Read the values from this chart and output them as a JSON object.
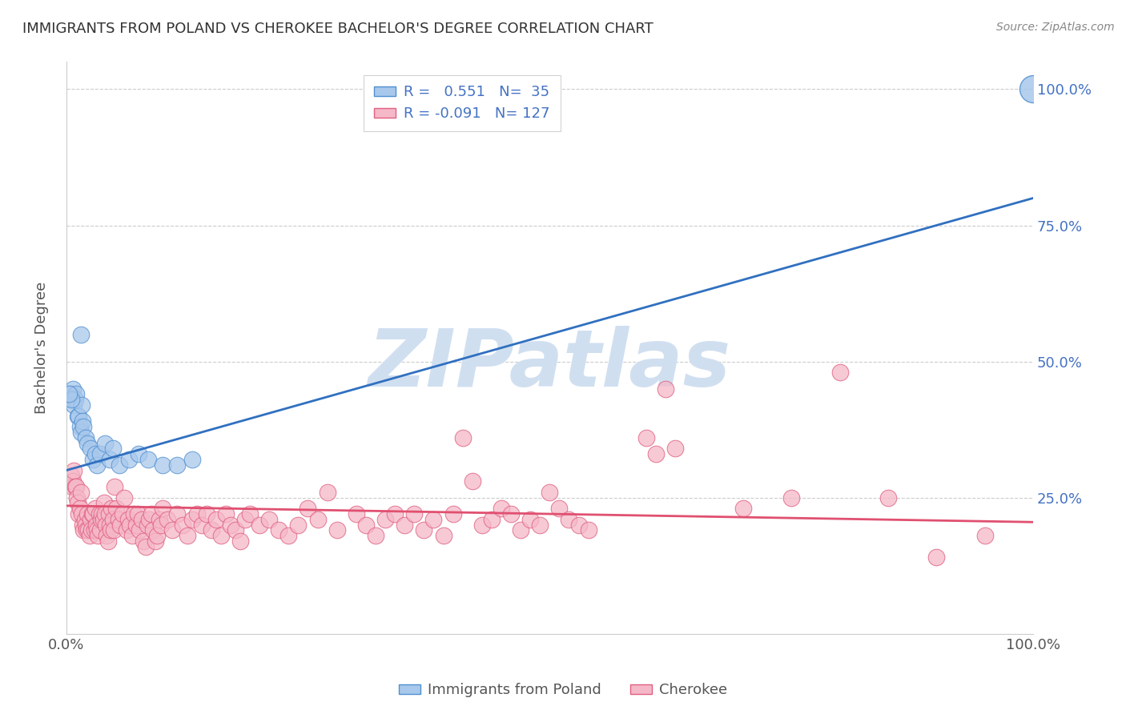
{
  "title": "IMMIGRANTS FROM POLAND VS CHEROKEE BACHELOR'S DEGREE CORRELATION CHART",
  "source": "Source: ZipAtlas.com",
  "ylabel": "Bachelor's Degree",
  "blue_R": "0.551",
  "blue_N": "35",
  "pink_R": "-0.091",
  "pink_N": "127",
  "blue_color": "#A8C8EC",
  "pink_color": "#F5B8C8",
  "blue_edge_color": "#5090D0",
  "pink_edge_color": "#E06080",
  "blue_line_color": "#3070C0",
  "pink_line_color": "#E05070",
  "watermark_color": "#D0DFF0",
  "xlim": [
    0.0,
    1.0
  ],
  "ylim": [
    0.0,
    1.05
  ],
  "yticks": [
    0.25,
    0.5,
    0.75,
    1.0
  ],
  "ytick_labels": [
    "25.0%",
    "50.0%",
    "75.0%",
    "100.0%"
  ],
  "blue_line": {
    "x0": 0.0,
    "y0": 0.3,
    "x1": 1.0,
    "y1": 0.8
  },
  "pink_line": {
    "x0": 0.0,
    "y0": 0.235,
    "x1": 1.0,
    "y1": 0.205
  },
  "blue_dots": [
    [
      0.004,
      0.44
    ],
    [
      0.005,
      0.44
    ],
    [
      0.006,
      0.43
    ],
    [
      0.007,
      0.45
    ],
    [
      0.008,
      0.42
    ],
    [
      0.009,
      0.43
    ],
    [
      0.01,
      0.44
    ],
    [
      0.012,
      0.4
    ],
    [
      0.013,
      0.4
    ],
    [
      0.014,
      0.38
    ],
    [
      0.015,
      0.37
    ],
    [
      0.016,
      0.42
    ],
    [
      0.017,
      0.39
    ],
    [
      0.018,
      0.38
    ],
    [
      0.02,
      0.36
    ],
    [
      0.022,
      0.35
    ],
    [
      0.025,
      0.34
    ],
    [
      0.028,
      0.32
    ],
    [
      0.03,
      0.33
    ],
    [
      0.032,
      0.31
    ],
    [
      0.035,
      0.33
    ],
    [
      0.04,
      0.35
    ],
    [
      0.045,
      0.32
    ],
    [
      0.048,
      0.34
    ],
    [
      0.055,
      0.31
    ],
    [
      0.065,
      0.32
    ],
    [
      0.075,
      0.33
    ],
    [
      0.085,
      0.32
    ],
    [
      0.1,
      0.31
    ],
    [
      0.115,
      0.31
    ],
    [
      0.13,
      0.32
    ],
    [
      0.015,
      0.55
    ],
    [
      0.005,
      0.43
    ],
    [
      0.003,
      0.44
    ],
    [
      1.0,
      1.0
    ]
  ],
  "pink_dots": [
    [
      0.005,
      0.29
    ],
    [
      0.006,
      0.27
    ],
    [
      0.007,
      0.28
    ],
    [
      0.008,
      0.3
    ],
    [
      0.009,
      0.27
    ],
    [
      0.01,
      0.27
    ],
    [
      0.011,
      0.25
    ],
    [
      0.012,
      0.24
    ],
    [
      0.013,
      0.22
    ],
    [
      0.014,
      0.23
    ],
    [
      0.015,
      0.26
    ],
    [
      0.016,
      0.22
    ],
    [
      0.017,
      0.2
    ],
    [
      0.018,
      0.19
    ],
    [
      0.019,
      0.21
    ],
    [
      0.02,
      0.2
    ],
    [
      0.021,
      0.19
    ],
    [
      0.022,
      0.22
    ],
    [
      0.023,
      0.19
    ],
    [
      0.024,
      0.18
    ],
    [
      0.025,
      0.21
    ],
    [
      0.026,
      0.19
    ],
    [
      0.027,
      0.22
    ],
    [
      0.028,
      0.22
    ],
    [
      0.029,
      0.19
    ],
    [
      0.03,
      0.23
    ],
    [
      0.031,
      0.2
    ],
    [
      0.032,
      0.19
    ],
    [
      0.033,
      0.18
    ],
    [
      0.034,
      0.22
    ],
    [
      0.035,
      0.19
    ],
    [
      0.036,
      0.21
    ],
    [
      0.037,
      0.22
    ],
    [
      0.038,
      0.21
    ],
    [
      0.039,
      0.24
    ],
    [
      0.04,
      0.22
    ],
    [
      0.041,
      0.2
    ],
    [
      0.042,
      0.18
    ],
    [
      0.043,
      0.17
    ],
    [
      0.044,
      0.22
    ],
    [
      0.045,
      0.2
    ],
    [
      0.046,
      0.19
    ],
    [
      0.047,
      0.23
    ],
    [
      0.048,
      0.21
    ],
    [
      0.049,
      0.19
    ],
    [
      0.05,
      0.27
    ],
    [
      0.052,
      0.23
    ],
    [
      0.054,
      0.21
    ],
    [
      0.056,
      0.2
    ],
    [
      0.058,
      0.22
    ],
    [
      0.06,
      0.25
    ],
    [
      0.062,
      0.19
    ],
    [
      0.064,
      0.21
    ],
    [
      0.066,
      0.2
    ],
    [
      0.068,
      0.18
    ],
    [
      0.07,
      0.22
    ],
    [
      0.072,
      0.2
    ],
    [
      0.074,
      0.22
    ],
    [
      0.076,
      0.19
    ],
    [
      0.078,
      0.21
    ],
    [
      0.08,
      0.17
    ],
    [
      0.082,
      0.16
    ],
    [
      0.084,
      0.2
    ],
    [
      0.086,
      0.21
    ],
    [
      0.088,
      0.22
    ],
    [
      0.09,
      0.19
    ],
    [
      0.092,
      0.17
    ],
    [
      0.094,
      0.18
    ],
    [
      0.096,
      0.21
    ],
    [
      0.098,
      0.2
    ],
    [
      0.1,
      0.23
    ],
    [
      0.105,
      0.21
    ],
    [
      0.11,
      0.19
    ],
    [
      0.115,
      0.22
    ],
    [
      0.12,
      0.2
    ],
    [
      0.125,
      0.18
    ],
    [
      0.13,
      0.21
    ],
    [
      0.135,
      0.22
    ],
    [
      0.14,
      0.2
    ],
    [
      0.145,
      0.22
    ],
    [
      0.15,
      0.19
    ],
    [
      0.155,
      0.21
    ],
    [
      0.16,
      0.18
    ],
    [
      0.165,
      0.22
    ],
    [
      0.17,
      0.2
    ],
    [
      0.175,
      0.19
    ],
    [
      0.18,
      0.17
    ],
    [
      0.185,
      0.21
    ],
    [
      0.19,
      0.22
    ],
    [
      0.2,
      0.2
    ],
    [
      0.21,
      0.21
    ],
    [
      0.22,
      0.19
    ],
    [
      0.23,
      0.18
    ],
    [
      0.24,
      0.2
    ],
    [
      0.25,
      0.23
    ],
    [
      0.26,
      0.21
    ],
    [
      0.27,
      0.26
    ],
    [
      0.28,
      0.19
    ],
    [
      0.3,
      0.22
    ],
    [
      0.31,
      0.2
    ],
    [
      0.32,
      0.18
    ],
    [
      0.33,
      0.21
    ],
    [
      0.34,
      0.22
    ],
    [
      0.35,
      0.2
    ],
    [
      0.36,
      0.22
    ],
    [
      0.37,
      0.19
    ],
    [
      0.38,
      0.21
    ],
    [
      0.39,
      0.18
    ],
    [
      0.4,
      0.22
    ],
    [
      0.41,
      0.36
    ],
    [
      0.42,
      0.28
    ],
    [
      0.43,
      0.2
    ],
    [
      0.44,
      0.21
    ],
    [
      0.45,
      0.23
    ],
    [
      0.46,
      0.22
    ],
    [
      0.47,
      0.19
    ],
    [
      0.48,
      0.21
    ],
    [
      0.49,
      0.2
    ],
    [
      0.5,
      0.26
    ],
    [
      0.51,
      0.23
    ],
    [
      0.52,
      0.21
    ],
    [
      0.53,
      0.2
    ],
    [
      0.54,
      0.19
    ],
    [
      0.6,
      0.36
    ],
    [
      0.61,
      0.33
    ],
    [
      0.62,
      0.45
    ],
    [
      0.63,
      0.34
    ],
    [
      0.7,
      0.23
    ],
    [
      0.75,
      0.25
    ],
    [
      0.8,
      0.48
    ],
    [
      0.85,
      0.25
    ],
    [
      0.9,
      0.14
    ],
    [
      0.95,
      0.18
    ]
  ]
}
